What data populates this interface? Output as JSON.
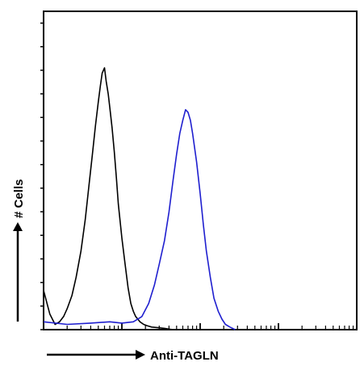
{
  "chart_data": {
    "type": "line",
    "title": "",
    "xlabel": "Anti-TAGLN",
    "ylabel": "# Cells",
    "x_scale": "log",
    "xlim": [
      1,
      10000
    ],
    "ylim": [
      0,
      100
    ],
    "grid": false,
    "legend": "none",
    "series": [
      {
        "color": "#000000",
        "x": [
          1,
          1.2,
          1.4,
          1.6,
          1.8,
          2,
          2.3,
          2.6,
          3,
          3.4,
          3.8,
          4.2,
          4.6,
          5,
          5.3,
          5.6,
          6,
          6.3,
          6.7,
          7,
          7.5,
          8,
          8.5,
          9,
          10,
          11,
          12,
          13,
          14,
          15,
          17,
          19,
          21,
          24,
          28,
          35,
          45
        ],
        "y": [
          15,
          6,
          2,
          3,
          5,
          8,
          13,
          20,
          30,
          42,
          55,
          67,
          78,
          87,
          93,
          98,
          100,
          95,
          90,
          85,
          77,
          68,
          58,
          48,
          35,
          25,
          16,
          10,
          7,
          5,
          3,
          2,
          1.5,
          1,
          0.8,
          0.5,
          0
        ]
      },
      {
        "color": "#1f1fcf",
        "x": [
          1,
          2,
          4,
          7,
          10,
          14,
          18,
          22,
          26,
          30,
          35,
          40,
          45,
          50,
          55,
          60,
          65,
          70,
          75,
          80,
          90,
          100,
          110,
          120,
          135,
          150,
          170,
          190,
          210,
          240,
          280
        ],
        "y": [
          3,
          2,
          2.5,
          3,
          2.5,
          3,
          5,
          10,
          17,
          25,
          34,
          45,
          57,
          67,
          75,
          80,
          84,
          83,
          80,
          75,
          64,
          52,
          40,
          30,
          20,
          12,
          7,
          4,
          2,
          1,
          0
        ]
      }
    ]
  }
}
